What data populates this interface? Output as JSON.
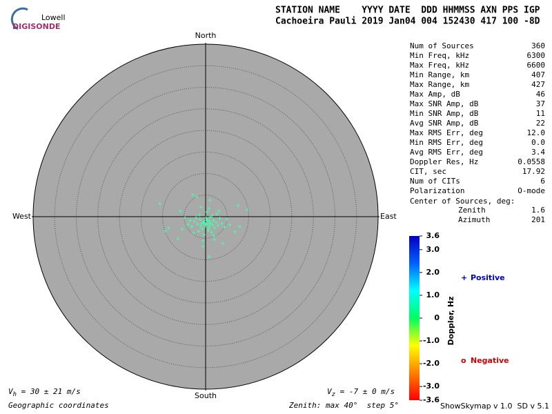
{
  "logo": {
    "top": "Lowell",
    "bottom": "DIGISONDE"
  },
  "header": {
    "line1": "STATION NAME    YYYY DATE  DDD HHMMSS AXN PPS IGP",
    "line2": "Cachoeira Pauli 2019 Jan04 004 152430 417 100 -8D"
  },
  "stats": {
    "rows": [
      [
        "Num of Sources",
        "360"
      ],
      [
        "Min Freq, kHz",
        "6300"
      ],
      [
        "Max Freq, kHz",
        "6600"
      ],
      [
        "Min Range, km",
        "407"
      ],
      [
        "Max Range, km",
        "427"
      ],
      [
        "Max Amp, dB",
        "46"
      ],
      [
        "Max SNR Amp, dB",
        "37"
      ],
      [
        "Min SNR Amp, dB",
        "11"
      ],
      [
        "Avg SNR Amp, dB",
        "22"
      ],
      [
        "Max RMS Err, deg",
        "12.0"
      ],
      [
        "Min RMS Err, deg",
        "0.0"
      ],
      [
        "Avg RMS Err, deg",
        "3.4"
      ],
      [
        "Doppler Res, Hz",
        "0.0558"
      ],
      [
        "CIT, sec",
        "17.92"
      ],
      [
        "Num of CITs",
        "6"
      ],
      [
        "Polarization",
        "O-mode"
      ]
    ],
    "center_title": "Center of Sources, deg:",
    "center_rows": [
      [
        "Zenith",
        "1.6"
      ],
      [
        "Azimuth",
        "201"
      ]
    ]
  },
  "legend": {
    "positive": {
      "symbol": "+",
      "text": "Positive",
      "color": "#0000c0"
    },
    "negative": {
      "symbol": "o",
      "text": "Negative",
      "color": "#d00000"
    }
  },
  "velocity": {
    "h": {
      "symbol": "V",
      "sub": "h",
      "text": " = 30 ± 21 m/s"
    },
    "z": {
      "symbol": "V",
      "sub": "z",
      "text": " = -7 ± 0 m/s"
    }
  },
  "footer": {
    "coords": "Geographic coordinates",
    "zenith": "Zenith: max 40°  step 5°",
    "version": "ShowSkymap v 1.0  SD v 5.1"
  },
  "chart_data": [
    {
      "type": "scatter",
      "color": "#44ffaa",
      "xlim": [
        -40,
        40
      ],
      "ylim": [
        -40,
        40
      ],
      "ring_step": 5,
      "directions": {
        "north": "North",
        "south": "South",
        "east": "East",
        "west": "West"
      },
      "x": [
        -0.5,
        0.4,
        1.2,
        -1.3,
        0.9,
        -0.2,
        1.8,
        -1.9,
        2.4,
        0.1,
        -0.8,
        1.5,
        -2.6,
        0.6,
        2.9,
        -1.4,
        3.3,
        -3.2,
        0.0,
        1.1,
        -0.9,
        2.1,
        -2.2,
        0.7,
        3.8,
        -3.6,
        1.4,
        -1.6,
        0.3,
        2.6,
        -4.1,
        4.4,
        -0.4,
        1.9,
        -2.8,
        0.8,
        -1.1,
        3.1,
        4.9,
        -4.8,
        2.0,
        -0.6,
        5.6,
        -5.4,
        0.2,
        -0.3,
        0.9,
        1.6,
        -1.2,
        0.5,
        -10.6,
        9.6,
        0.8,
        -8.6,
        -9.3,
        4.0,
        -2.1,
        1.0,
        7.5,
        -5.9,
        -0.6,
        6.8,
        -6.4,
        -3.0,
        7.9
      ],
      "values": [
        -1.2,
        -0.8,
        -1.5,
        -0.6,
        -2.1,
        -2.4,
        -0.9,
        -1.7,
        -1.3,
        -0.3,
        -2.9,
        0.2,
        -1.1,
        -3.2,
        -2.0,
        0.4,
        -0.4,
        -2.3,
        -1.8,
        -0.1,
        -1.6,
        -2.6,
        -0.2,
        -2.7,
        -1.6,
        -0.9,
        -3.6,
        -3.4,
        1.1,
        0.6,
        -1.8,
        -2.4,
        -4.2,
        -4.4,
        -3.8,
        1.9,
        2.2,
        1.3,
        -0.6,
        -0.3,
        -5.3,
        -5.6,
        -1.9,
        -2.9,
        -0.9,
        -1.4,
        -1.1,
        -1.9,
        -2.2,
        -1.6,
        3.0,
        1.6,
        -9.3,
        -2.6,
        -3.3,
        -6.2,
        4.6,
        3.8,
        2.6,
        1.3,
        -6.9,
        -3.5,
        -5.1,
        5.1,
        -2.3
      ]
    },
    {
      "type": "colorbar",
      "label": "Doppler, Hz",
      "ylim": [
        -3.6,
        3.6
      ],
      "colors": [
        "#ff0000",
        "#ff8000",
        "#ffff00",
        "#00ff60",
        "#00ffff",
        "#0060ff",
        "#0000c0"
      ],
      "yticks": [
        3.6,
        {
          "value": 3,
          "label": "3.0"
        },
        {
          "value": 2,
          "label": "2.0"
        },
        {
          "value": 1,
          "label": "1.0"
        },
        0,
        {
          "value": -1,
          "label": "-1.0"
        },
        {
          "value": -2,
          "label": "-2.0"
        },
        {
          "value": -3,
          "label": "-3.0"
        },
        -3.6
      ]
    }
  ]
}
